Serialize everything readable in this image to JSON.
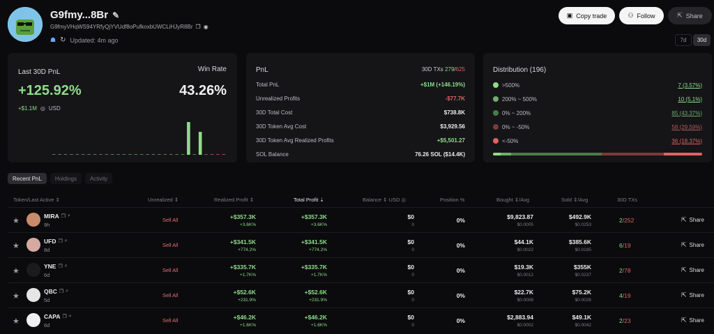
{
  "profile": {
    "name": "G9fmy...8Br",
    "address": "G9fmyVHqWS94YRfyQjYVUdf8oPufkoxbUWCLiHJyR8Br",
    "updated": "Updated: 4m ago"
  },
  "actions": {
    "copy_trade": "Copy trade",
    "follow": "Follow",
    "share": "Share"
  },
  "range": {
    "options": [
      "7d",
      "30d"
    ],
    "selected": "30d"
  },
  "pnl_card": {
    "label": "Last 30D PnL",
    "value": "+125.92%",
    "usd_value": "+$1.1M",
    "usd_label": "USD",
    "win_rate_label": "Win Rate",
    "win_rate": "43.26%",
    "daily_bars": [
      0,
      0,
      0,
      0,
      0,
      0,
      0,
      0,
      0,
      0,
      0,
      0,
      0,
      0,
      0,
      0,
      0,
      0,
      0,
      0,
      0,
      0,
      0,
      1.0,
      0,
      0.7,
      0,
      0,
      0,
      0
    ]
  },
  "pnl_detail": {
    "title": "PnL",
    "tx_label": "30D TXs",
    "tx_buys": "279",
    "tx_sep": "/",
    "tx_sells": "625",
    "rows": [
      {
        "key": "Total PnL",
        "value": "+$1M (+146.19%)",
        "tone": "g"
      },
      {
        "key": "Unrealized Profits",
        "value": "-$77.7K",
        "tone": "r"
      },
      {
        "key": "30D Total Cost",
        "value": "$738.8K",
        "tone": ""
      },
      {
        "key": "30D Token Avg Cost",
        "value": "$3,929.56",
        "tone": ""
      },
      {
        "key": "30D Token Avg Realized Profits",
        "value": "+$5,501.27",
        "tone": "g"
      },
      {
        "key": "SOL Balance",
        "value": "76.26 SOL ($14.4K)",
        "tone": ""
      }
    ]
  },
  "distribution": {
    "title": "Distribution (196)",
    "rows": [
      {
        "label": ">500%",
        "value": "7 (3.57%)",
        "color": "#8fdc8a",
        "value_color": "#8fdc8a"
      },
      {
        "label": "200% ~ 500%",
        "value": "10 (5.1%)",
        "color": "#6fae6b",
        "value_color": "#8fdc8a"
      },
      {
        "label": "0% ~ 200%",
        "value": "85 (43.37%)",
        "color": "#4b7a49",
        "value_color": "#6fa96b"
      },
      {
        "label": "0% ~ -50%",
        "value": "58 (29.59%)",
        "color": "#7a3a3a",
        "value_color": "#b35a5a"
      },
      {
        "label": "<-50%",
        "value": "36 (18.37%)",
        "color": "#e06363",
        "value_color": "#e06363"
      }
    ],
    "bar": [
      {
        "pct": 3.57,
        "color": "#8fdc8a"
      },
      {
        "pct": 5.1,
        "color": "#6fae6b"
      },
      {
        "pct": 43.37,
        "color": "#4b7a49"
      },
      {
        "pct": 29.59,
        "color": "#7a3a3a"
      },
      {
        "pct": 18.37,
        "color": "#e06363"
      }
    ]
  },
  "tabs": [
    {
      "label": "Recent PnL",
      "active": true
    },
    {
      "label": "Holdings",
      "active": false
    },
    {
      "label": "Activity",
      "active": false
    }
  ],
  "table": {
    "headers": {
      "token": "Token/Last Active ⇕",
      "unrealized": "Unrealized ⇕",
      "realized": "Realized Profit ⇕",
      "total": "Total Profit ⇣",
      "balance": "Balance ⇕  USD ◎",
      "position": "Position %",
      "bought": "Bought ⇕/Avg",
      "sold": "Sold ⇕/Avg",
      "txs": "30D TXs"
    },
    "sell_all": "Sell All",
    "share": "Share",
    "rows": [
      {
        "name": "MIRA",
        "age": "9h",
        "realized": "+$357.3K",
        "realized_pct": "+3.6K%",
        "total": "+$357.3K",
        "total_pct": "+3.6K%",
        "balance": "$0",
        "balance_sub": "0",
        "position": "0%",
        "bought": "$9,823.87",
        "bought_avg": "$0.0005",
        "sold": "$492.9K",
        "sold_avg": "$0.0253",
        "tx_buy": "2",
        "tx_sell": "252",
        "avatar_color": "#c98b6b"
      },
      {
        "name": "UFD",
        "age": "8d",
        "realized": "+$341.5K",
        "realized_pct": "+774.2%",
        "total": "+$341.5K",
        "total_pct": "+774.2%",
        "balance": "$0",
        "balance_sub": "0",
        "position": "0%",
        "bought": "$44.1K",
        "bought_avg": "$0.0022",
        "sold": "$385.6K",
        "sold_avg": "$0.0195",
        "tx_buy": "6",
        "tx_sell": "19",
        "avatar_color": "#d6a9a3"
      },
      {
        "name": "YNE",
        "age": "6d",
        "realized": "+$335.7K",
        "realized_pct": "+1.7K%",
        "total": "+$335.7K",
        "total_pct": "+1.7K%",
        "balance": "$0",
        "balance_sub": "0",
        "position": "0%",
        "bought": "$19.3K",
        "bought_avg": "$0.0012",
        "sold": "$355K",
        "sold_avg": "$0.0237",
        "tx_buy": "2",
        "tx_sell": "78",
        "avatar_color": "#1b1b1b"
      },
      {
        "name": "QBC",
        "age": "5d",
        "realized": "+$52.6K",
        "realized_pct": "+231.9%",
        "total": "+$52.6K",
        "total_pct": "+231.9%",
        "balance": "$0",
        "balance_sub": "0",
        "position": "0%",
        "bought": "$22.7K",
        "bought_avg": "$0.0008",
        "sold": "$75.2K",
        "sold_avg": "$0.0026",
        "tx_buy": "4",
        "tx_sell": "19",
        "avatar_color": "#e5e5e5"
      },
      {
        "name": "CAPA",
        "age": "6d",
        "realized": "+$46.2K",
        "realized_pct": "+1.6K%",
        "total": "+$46.2K",
        "total_pct": "+1.6K%",
        "balance": "$0",
        "balance_sub": "0",
        "position": "0%",
        "bought": "$2,883.94",
        "bought_avg": "$0.0002",
        "sold": "$49.1K",
        "sold_avg": "$0.0042",
        "tx_buy": "2",
        "tx_sell": "23",
        "avatar_color": "#f0f0f0"
      }
    ]
  }
}
